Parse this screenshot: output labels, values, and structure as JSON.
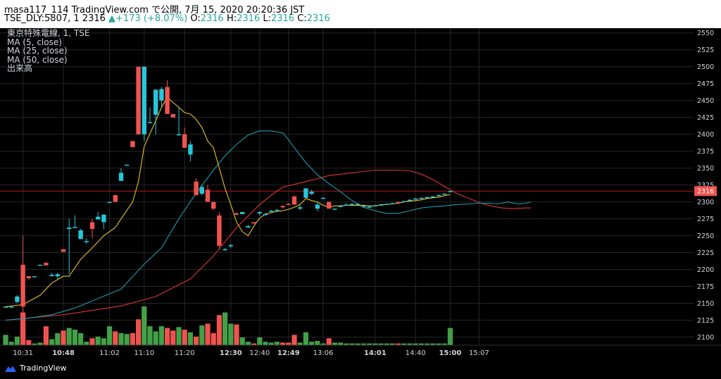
{
  "header": {
    "line1_prefix": "masa117_114 TradingView.com で公開, 7月 15, 2020 20:20:36 JST",
    "symbol": "TSE_DLY:5807, 1",
    "last": "2316",
    "change_arrow": "▲",
    "change": "+173 (+8.07%)",
    "o_label": "O:",
    "o_value": "2316",
    "h_label": "H:",
    "h_value": "2316",
    "l_label": "L:",
    "l_value": "2316",
    "c_label": "C:",
    "c_value": "2316"
  },
  "legend": {
    "title": "東京特殊電線, 1, TSE",
    "ma5": "MA (5, close)",
    "ma25": "MA (25, close)",
    "ma50": "MA (50, close)",
    "volume": "出来高"
  },
  "brand": {
    "name": "TradingView",
    "icon": "tradingview-logo-icon"
  },
  "colors": {
    "background": "#000000",
    "up": "#26c6da",
    "down": "#ef5350",
    "vol_up": "#43a047",
    "vol_down": "#ef5350",
    "ma5": "#e6c229",
    "ma25": "#1e9bb0",
    "ma50": "#d9372d",
    "price_line": "#b71c1c",
    "grid": "#262626",
    "axis_text": "#d1d4dc",
    "last_price_badge": "#ef5350"
  },
  "chart_data": {
    "type": "candlestick",
    "title": "東京特殊電線, 1, TSE",
    "last_price": "2316",
    "y_ticks": [
      2100,
      2125,
      2150,
      2175,
      2200,
      2225,
      2250,
      2275,
      2300,
      2325,
      2350,
      2375,
      2400,
      2425,
      2450,
      2475,
      2500,
      2525,
      2550
    ],
    "ylim": [
      2088,
      2557
    ],
    "x_ticks": [
      {
        "label": "10:31",
        "bar": 3,
        "bold": false
      },
      {
        "label": "10:48",
        "bar": 10,
        "bold": true
      },
      {
        "label": "11:02",
        "bar": 18,
        "bold": false
      },
      {
        "label": "11:10",
        "bar": 24,
        "bold": false
      },
      {
        "label": "11:20",
        "bar": 31,
        "bold": false
      },
      {
        "label": "12:30",
        "bar": 39,
        "bold": true
      },
      {
        "label": "12:40",
        "bar": 44,
        "bold": false
      },
      {
        "label": "12:49",
        "bar": 49,
        "bold": true
      },
      {
        "label": "13:06",
        "bar": 55,
        "bold": false
      },
      {
        "label": "14:01",
        "bar": 64,
        "bold": true
      },
      {
        "label": "14:40",
        "bar": 71,
        "bold": false
      },
      {
        "label": "15:00",
        "bar": 77,
        "bold": true
      },
      {
        "label": "15:07",
        "bar": 82,
        "bold": false
      }
    ],
    "candles": [
      {
        "o": 2145,
        "h": 2145,
        "l": 2145,
        "c": 2145,
        "v": 12
      },
      {
        "o": 2145,
        "h": 2145,
        "l": 2145,
        "c": 2145,
        "v": 4
      },
      {
        "o": 2152,
        "h": 2162,
        "l": 2150,
        "c": 2160,
        "v": 10
      },
      {
        "o": 2207,
        "h": 2250,
        "l": 2088,
        "c": 2145,
        "v": 38
      },
      {
        "o": 2190,
        "h": 2190,
        "l": 2185,
        "c": 2187,
        "v": 6
      },
      {
        "o": 2190,
        "h": 2190,
        "l": 2190,
        "c": 2190,
        "v": 2
      },
      {
        "o": 2207,
        "h": 2207,
        "l": 2207,
        "c": 2207,
        "v": 3
      },
      {
        "o": 2210,
        "h": 2210,
        "l": 2206,
        "c": 2206,
        "v": 22
      },
      {
        "o": 2190,
        "h": 2195,
        "l": 2190,
        "c": 2192,
        "v": 7
      },
      {
        "o": 2190,
        "h": 2195,
        "l": 2186,
        "c": 2193,
        "v": 14
      },
      {
        "o": 2230,
        "h": 2230,
        "l": 2226,
        "c": 2226,
        "v": 17
      },
      {
        "o": 2260,
        "h": 2275,
        "l": 2193,
        "c": 2262,
        "v": 20
      },
      {
        "o": 2262,
        "h": 2280,
        "l": 2262,
        "c": 2263,
        "v": 18
      },
      {
        "o": 2245,
        "h": 2260,
        "l": 2245,
        "c": 2258,
        "v": 14
      },
      {
        "o": 2242,
        "h": 2246,
        "l": 2238,
        "c": 2242,
        "v": 4
      },
      {
        "o": 2270,
        "h": 2275,
        "l": 2246,
        "c": 2260,
        "v": 8
      },
      {
        "o": 2274,
        "h": 2285,
        "l": 2274,
        "c": 2278,
        "v": 10
      },
      {
        "o": 2270,
        "h": 2282,
        "l": 2260,
        "c": 2281,
        "v": 8
      },
      {
        "o": 2300,
        "h": 2300,
        "l": 2300,
        "c": 2300,
        "v": 22
      },
      {
        "o": 2310,
        "h": 2310,
        "l": 2300,
        "c": 2300,
        "v": 16
      },
      {
        "o": 2331,
        "h": 2350,
        "l": 2331,
        "c": 2343,
        "v": 14
      },
      {
        "o": 2355,
        "h": 2355,
        "l": 2355,
        "c": 2355,
        "v": 13
      },
      {
        "o": 2390,
        "h": 2390,
        "l": 2381,
        "c": 2381,
        "v": 14
      },
      {
        "o": 2500,
        "h": 2500,
        "l": 2400,
        "c": 2400,
        "v": 30
      },
      {
        "o": 2400,
        "h": 2500,
        "l": 2390,
        "c": 2500,
        "v": 45
      },
      {
        "o": 2418,
        "h": 2440,
        "l": 2418,
        "c": 2418,
        "v": 22
      },
      {
        "o": 2429,
        "h": 2466,
        "l": 2400,
        "c": 2466,
        "v": 16
      },
      {
        "o": 2450,
        "h": 2470,
        "l": 2440,
        "c": 2467,
        "v": 22
      },
      {
        "o": 2470,
        "h": 2480,
        "l": 2430,
        "c": 2430,
        "v": 20
      },
      {
        "o": 2430,
        "h": 2430,
        "l": 2425,
        "c": 2425,
        "v": 17
      },
      {
        "o": 2400,
        "h": 2440,
        "l": 2398,
        "c": 2400,
        "v": 21
      },
      {
        "o": 2400,
        "h": 2410,
        "l": 2380,
        "c": 2380,
        "v": 18
      },
      {
        "o": 2370,
        "h": 2390,
        "l": 2360,
        "c": 2385,
        "v": 15
      },
      {
        "o": 2330,
        "h": 2335,
        "l": 2310,
        "c": 2310,
        "v": 10
      },
      {
        "o": 2312,
        "h": 2325,
        "l": 2310,
        "c": 2322,
        "v": 23
      },
      {
        "o": 2318,
        "h": 2325,
        "l": 2300,
        "c": 2300,
        "v": 25
      },
      {
        "o": 2300,
        "h": 2300,
        "l": 2288,
        "c": 2290,
        "v": 14
      },
      {
        "o": 2280,
        "h": 2285,
        "l": 2230,
        "c": 2235,
        "v": 35
      },
      {
        "o": 2230,
        "h": 2232,
        "l": 2228,
        "c": 2230,
        "v": 38
      },
      {
        "o": 2235,
        "h": 2238,
        "l": 2232,
        "c": 2236,
        "v": 25
      },
      {
        "o": 2283,
        "h": 2285,
        "l": 2280,
        "c": 2281,
        "v": 24
      },
      {
        "o": 2282,
        "h": 2285,
        "l": 2282,
        "c": 2285,
        "v": 9
      },
      {
        "o": 2262,
        "h": 2266,
        "l": 2262,
        "c": 2264,
        "v": 4
      },
      {
        "o": 2270,
        "h": 2270,
        "l": 2268,
        "c": 2268,
        "v": 2
      },
      {
        "o": 2283,
        "h": 2286,
        "l": 2280,
        "c": 2285,
        "v": 9
      },
      {
        "o": 2282,
        "h": 2284,
        "l": 2280,
        "c": 2282,
        "v": 4
      },
      {
        "o": 2286,
        "h": 2288,
        "l": 2285,
        "c": 2287,
        "v": 3
      },
      {
        "o": 2288,
        "h": 2290,
        "l": 2286,
        "c": 2288,
        "v": 4
      },
      {
        "o": 2294,
        "h": 2295,
        "l": 2290,
        "c": 2292,
        "v": 3
      },
      {
        "o": 2297,
        "h": 2298,
        "l": 2295,
        "c": 2296,
        "v": 3
      },
      {
        "o": 2308,
        "h": 2310,
        "l": 2296,
        "c": 2296,
        "v": 12
      },
      {
        "o": 2290,
        "h": 2295,
        "l": 2288,
        "c": 2292,
        "v": 3
      },
      {
        "o": 2306,
        "h": 2320,
        "l": 2306,
        "c": 2320,
        "v": 15
      },
      {
        "o": 2312,
        "h": 2318,
        "l": 2310,
        "c": 2315,
        "v": 4
      },
      {
        "o": 2290,
        "h": 2300,
        "l": 2286,
        "c": 2296,
        "v": 5
      },
      {
        "o": 2305,
        "h": 2307,
        "l": 2305,
        "c": 2306,
        "v": 2
      },
      {
        "o": 2300,
        "h": 2300,
        "l": 2290,
        "c": 2290,
        "v": 8
      },
      {
        "o": 2290,
        "h": 2290,
        "l": 2288,
        "c": 2290,
        "v": 3
      },
      {
        "o": 2294,
        "h": 2296,
        "l": 2292,
        "c": 2294,
        "v": 3
      },
      {
        "o": 2296,
        "h": 2298,
        "l": 2294,
        "c": 2296,
        "v": 2
      },
      {
        "o": 2297,
        "h": 2298,
        "l": 2296,
        "c": 2297,
        "v": 2
      },
      {
        "o": 2296,
        "h": 2298,
        "l": 2294,
        "c": 2297,
        "v": 2
      },
      {
        "o": 2294,
        "h": 2296,
        "l": 2292,
        "c": 2294,
        "v": 2
      },
      {
        "o": 2293,
        "h": 2295,
        "l": 2291,
        "c": 2293,
        "v": 2
      },
      {
        "o": 2295,
        "h": 2296,
        "l": 2294,
        "c": 2295,
        "v": 2
      },
      {
        "o": 2296,
        "h": 2297,
        "l": 2295,
        "c": 2296,
        "v": 2
      },
      {
        "o": 2297,
        "h": 2298,
        "l": 2296,
        "c": 2297,
        "v": 2
      },
      {
        "o": 2298,
        "h": 2299,
        "l": 2297,
        "c": 2298,
        "v": 2
      },
      {
        "o": 2300,
        "h": 2300,
        "l": 2298,
        "c": 2299,
        "v": 2
      },
      {
        "o": 2301,
        "h": 2302,
        "l": 2300,
        "c": 2301,
        "v": 2
      },
      {
        "o": 2303,
        "h": 2304,
        "l": 2302,
        "c": 2303,
        "v": 2
      },
      {
        "o": 2305,
        "h": 2306,
        "l": 2304,
        "c": 2305,
        "v": 2
      },
      {
        "o": 2306,
        "h": 2307,
        "l": 2305,
        "c": 2306,
        "v": 2
      },
      {
        "o": 2307,
        "h": 2308,
        "l": 2306,
        "c": 2307,
        "v": 2
      },
      {
        "o": 2308,
        "h": 2309,
        "l": 2307,
        "c": 2308,
        "v": 2
      },
      {
        "o": 2310,
        "h": 2311,
        "l": 2309,
        "c": 2310,
        "v": 2
      },
      {
        "o": 2312,
        "h": 2313,
        "l": 2311,
        "c": 2312,
        "v": 2
      },
      {
        "o": 2316,
        "h": 2316,
        "l": 2316,
        "c": 2316,
        "v": 20
      }
    ],
    "ma5": [
      [
        0,
        2145
      ],
      [
        3,
        2148
      ],
      [
        6,
        2162
      ],
      [
        8,
        2180
      ],
      [
        10,
        2190
      ],
      [
        11,
        2190
      ],
      [
        13,
        2215
      ],
      [
        15,
        2232
      ],
      [
        17,
        2250
      ],
      [
        19,
        2262
      ],
      [
        20,
        2275
      ],
      [
        22,
        2300
      ],
      [
        23,
        2330
      ],
      [
        24,
        2382
      ],
      [
        26,
        2420
      ],
      [
        27,
        2440
      ],
      [
        28,
        2455
      ],
      [
        29,
        2447
      ],
      [
        30,
        2440
      ],
      [
        31,
        2432
      ],
      [
        32,
        2430
      ],
      [
        33,
        2422
      ],
      [
        34,
        2410
      ],
      [
        35,
        2390
      ],
      [
        36,
        2380
      ],
      [
        37,
        2350
      ],
      [
        38,
        2320
      ],
      [
        39,
        2296
      ],
      [
        40,
        2270
      ],
      [
        41,
        2256
      ],
      [
        42,
        2250
      ],
      [
        43,
        2264
      ],
      [
        44,
        2276
      ],
      [
        45,
        2282
      ],
      [
        46,
        2284
      ],
      [
        47,
        2286
      ],
      [
        48,
        2287
      ],
      [
        49,
        2289
      ],
      [
        50,
        2292
      ],
      [
        51,
        2296
      ],
      [
        52,
        2305
      ],
      [
        53,
        2302
      ],
      [
        54,
        2300
      ],
      [
        55,
        2295
      ],
      [
        56,
        2292
      ],
      [
        57,
        2294
      ],
      [
        58,
        2294
      ],
      [
        59,
        2295
      ],
      [
        60,
        2295
      ],
      [
        61,
        2295
      ],
      [
        62,
        2295
      ],
      [
        63,
        2294
      ],
      [
        64,
        2294
      ],
      [
        65,
        2296
      ],
      [
        66,
        2296
      ],
      [
        67,
        2297
      ],
      [
        68,
        2298
      ],
      [
        69,
        2300
      ],
      [
        70,
        2301
      ],
      [
        71,
        2302
      ],
      [
        72,
        2303
      ],
      [
        73,
        2305
      ],
      [
        74,
        2306
      ],
      [
        75,
        2307
      ],
      [
        76,
        2309
      ],
      [
        77,
        2311
      ]
    ],
    "ma25": [
      [
        0,
        2125
      ],
      [
        4,
        2128
      ],
      [
        8,
        2133
      ],
      [
        12,
        2143
      ],
      [
        16,
        2157
      ],
      [
        20,
        2171
      ],
      [
        24,
        2208
      ],
      [
        27,
        2232
      ],
      [
        30,
        2275
      ],
      [
        33,
        2313
      ],
      [
        36,
        2347
      ],
      [
        38,
        2368
      ],
      [
        40,
        2385
      ],
      [
        42,
        2399
      ],
      [
        44,
        2405
      ],
      [
        46,
        2405
      ],
      [
        48,
        2402
      ],
      [
        49,
        2392
      ],
      [
        50,
        2380
      ],
      [
        52,
        2358
      ],
      [
        54,
        2340
      ],
      [
        56,
        2327
      ],
      [
        58,
        2315
      ],
      [
        60,
        2302
      ],
      [
        62,
        2292
      ],
      [
        64,
        2287
      ],
      [
        66,
        2283
      ],
      [
        68,
        2283
      ],
      [
        70,
        2287
      ],
      [
        72,
        2291
      ],
      [
        74,
        2293
      ],
      [
        76,
        2294
      ],
      [
        78,
        2296
      ],
      [
        80,
        2297
      ],
      [
        82,
        2298
      ],
      [
        84,
        2298
      ],
      [
        85,
        2297
      ],
      [
        86,
        2298
      ],
      [
        87,
        2300
      ],
      [
        88,
        2298
      ],
      [
        89,
        2297
      ],
      [
        90,
        2298
      ],
      [
        91,
        2300
      ]
    ],
    "ma50": [
      [
        0,
        2125
      ],
      [
        10,
        2133
      ],
      [
        20,
        2146
      ],
      [
        26,
        2160
      ],
      [
        32,
        2186
      ],
      [
        36,
        2220
      ],
      [
        40,
        2262
      ],
      [
        44,
        2296
      ],
      [
        46,
        2310
      ],
      [
        48,
        2322
      ],
      [
        52,
        2330
      ],
      [
        56,
        2339
      ],
      [
        60,
        2343
      ],
      [
        64,
        2347
      ],
      [
        68,
        2347
      ],
      [
        70,
        2346
      ],
      [
        72,
        2341
      ],
      [
        74,
        2333
      ],
      [
        76,
        2323
      ],
      [
        78,
        2313
      ],
      [
        80,
        2306
      ],
      [
        82,
        2299
      ],
      [
        84,
        2294
      ],
      [
        86,
        2291
      ],
      [
        88,
        2290
      ],
      [
        90,
        2291
      ],
      [
        91,
        2291
      ]
    ]
  }
}
